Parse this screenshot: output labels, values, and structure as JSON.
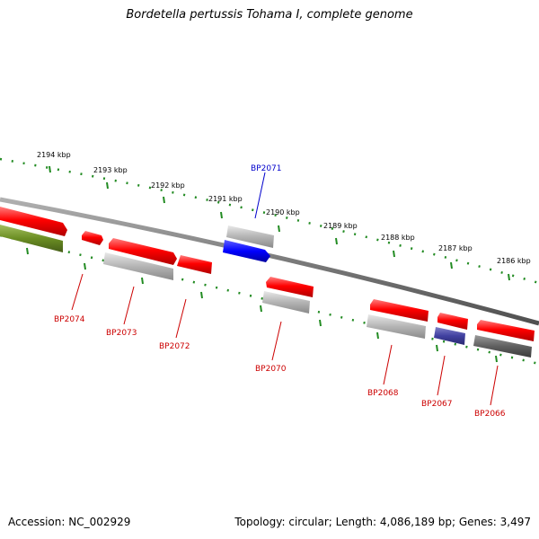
{
  "title": "Bordetella pertussis Tohama I, complete genome",
  "footer": {
    "accession": "Accession: NC_002929",
    "summary": "Topology: circular; Length: 4,086,189 bp; Genes: 3,497"
  },
  "colors": {
    "red_gene": "#ff0000",
    "gray_gene": "#b4b4b4",
    "blue_gene": "#0000ff",
    "olive_gene": "#6b8e23",
    "navy_gene": "#4040a0",
    "dark_gray_gene": "#606060",
    "backbone": "#808080",
    "ticks": "#228b22",
    "red_label": "#cc0000",
    "blue_label": "#0000cc"
  },
  "kbp_labels": [
    "2194 kbp",
    "2193 kbp",
    "2192 kbp",
    "2191 kbp",
    "2190 kbp",
    "2189 kbp",
    "2188 kbp",
    "2187 kbp",
    "2186 kbp"
  ],
  "gene_labels": {
    "BP2071": "BP2071",
    "BP2074": "BP2074",
    "BP2073": "BP2073",
    "BP2072": "BP2072",
    "BP2070": "BP2070",
    "BP2068": "BP2068",
    "BP2067": "BP2067",
    "BP2066": "BP2066"
  }
}
